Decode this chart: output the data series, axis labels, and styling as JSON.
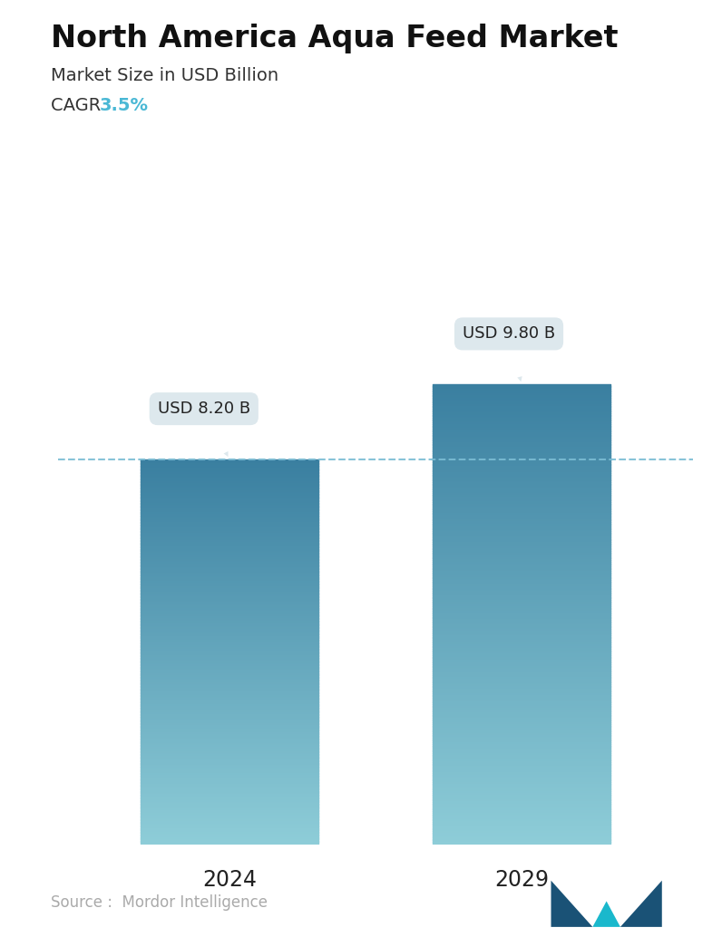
{
  "title": "North America Aqua Feed Market",
  "subtitle": "Market Size in USD Billion",
  "cagr_label": "CAGR ",
  "cagr_value": "3.5%",
  "cagr_color": "#4ab8d5",
  "categories": [
    "2024",
    "2029"
  ],
  "values": [
    8.2,
    9.8
  ],
  "value_labels": [
    "USD 8.20 B",
    "USD 9.80 B"
  ],
  "bar_top_color": "#3a7fa0",
  "bar_bottom_color": "#8ecdd8",
  "bar_width": 0.28,
  "dashed_line_color": "#7bbdd4",
  "dashed_line_value": 8.2,
  "background_color": "#ffffff",
  "title_fontsize": 24,
  "subtitle_fontsize": 14,
  "cagr_fontsize": 14,
  "xlabel_fontsize": 17,
  "annotation_fontsize": 13,
  "source_text": "Source :  Mordor Intelligence",
  "source_color": "#aaaaaa",
  "source_fontsize": 12,
  "ylim_max": 12.0,
  "callout_bg_color": "#dde8ed",
  "callout_text_color": "#222222",
  "logo_left_color": "#1a5276",
  "logo_mid_color": "#1ab8cc",
  "logo_right_color": "#1a5276"
}
